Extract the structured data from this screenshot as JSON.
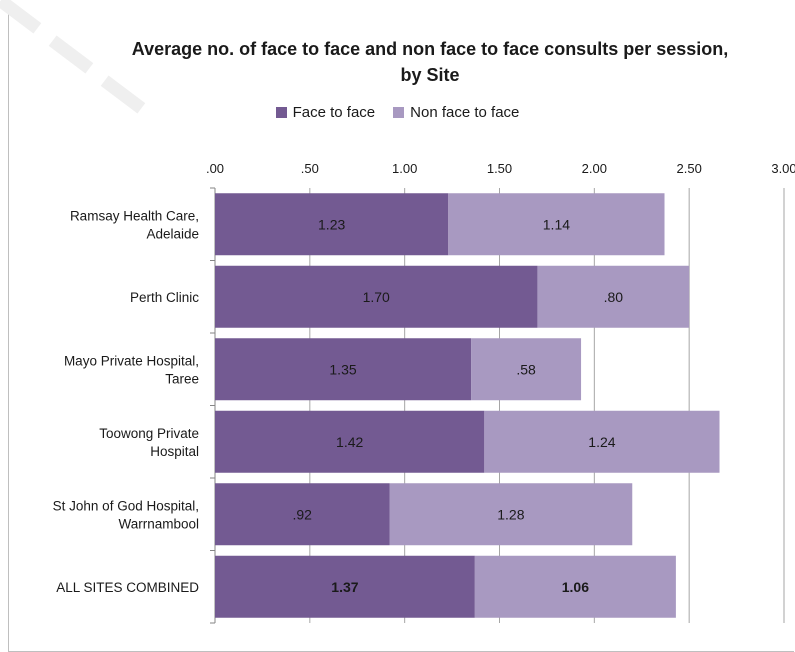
{
  "title": "Average no. of face to face and non face to face consults per session, by Site",
  "colors": {
    "face_to_face": "#735a92",
    "non_face_to_face": "#a899c1",
    "grid": "#a6a6a6",
    "text": "#1a1a1a"
  },
  "legend": {
    "face_to_face": "Face to face",
    "non_face_to_face": "Non face to face"
  },
  "chart_data": {
    "type": "bar",
    "orientation": "horizontal",
    "stacked": true,
    "title": "Average no. of face to face and non face to face consults per session, by Site",
    "categories": [
      [
        "Ramsay Health Care,",
        "Adelaide"
      ],
      [
        "Perth Clinic"
      ],
      [
        "Mayo Private Hospital,",
        "Taree"
      ],
      [
        "Toowong Private",
        "Hospital"
      ],
      [
        "St John of God Hospital,",
        "Warrnambool"
      ],
      [
        "ALL SITES COMBINED"
      ]
    ],
    "series": [
      {
        "name": "Face to face",
        "values": [
          1.23,
          1.7,
          1.35,
          1.42,
          0.92,
          1.37
        ],
        "labels": [
          "1.23",
          "1.70",
          "1.35",
          "1.42",
          ".92",
          "1.37"
        ]
      },
      {
        "name": "Non face to face",
        "values": [
          1.14,
          0.8,
          0.58,
          1.24,
          1.28,
          1.06
        ],
        "labels": [
          "1.14",
          ".80",
          ".58",
          "1.24",
          "1.28",
          "1.06"
        ]
      }
    ],
    "bold_label_rows": [
      5
    ],
    "xlim": [
      0,
      3.0
    ],
    "xticks": [
      ".00",
      ".50",
      "1.00",
      "1.50",
      "2.00",
      "2.50",
      "3.00"
    ],
    "xaxis_position": "top",
    "grid": true,
    "legend_position": "top"
  }
}
